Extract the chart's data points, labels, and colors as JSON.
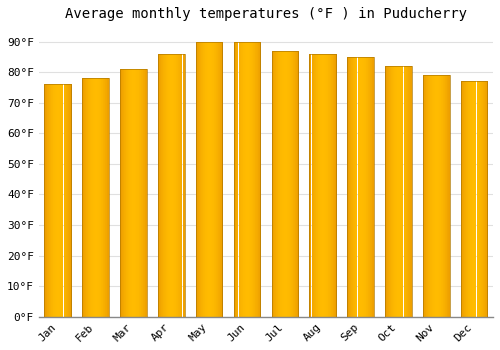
{
  "title": "Average monthly temperatures (°F ) in Puducherry",
  "months": [
    "Jan",
    "Feb",
    "Mar",
    "Apr",
    "May",
    "Jun",
    "Jul",
    "Aug",
    "Sep",
    "Oct",
    "Nov",
    "Dec"
  ],
  "values": [
    76,
    78,
    81,
    86,
    90,
    90,
    87,
    86,
    85,
    82,
    79,
    77
  ],
  "bar_color_left": "#E8920A",
  "bar_color_center": "#FFB800",
  "bar_color_right": "#E08800",
  "bar_edge_color": "#C07800",
  "background_color": "#FFFFFF",
  "grid_color": "#E0E0E0",
  "title_fontsize": 10,
  "tick_fontsize": 8,
  "ylim": [
    0,
    95
  ],
  "yticks": [
    0,
    10,
    20,
    30,
    40,
    50,
    60,
    70,
    80,
    90
  ],
  "ytick_labels": [
    "0°F",
    "10°F",
    "20°F",
    "30°F",
    "40°F",
    "50°F",
    "60°F",
    "70°F",
    "80°F",
    "90°F"
  ]
}
